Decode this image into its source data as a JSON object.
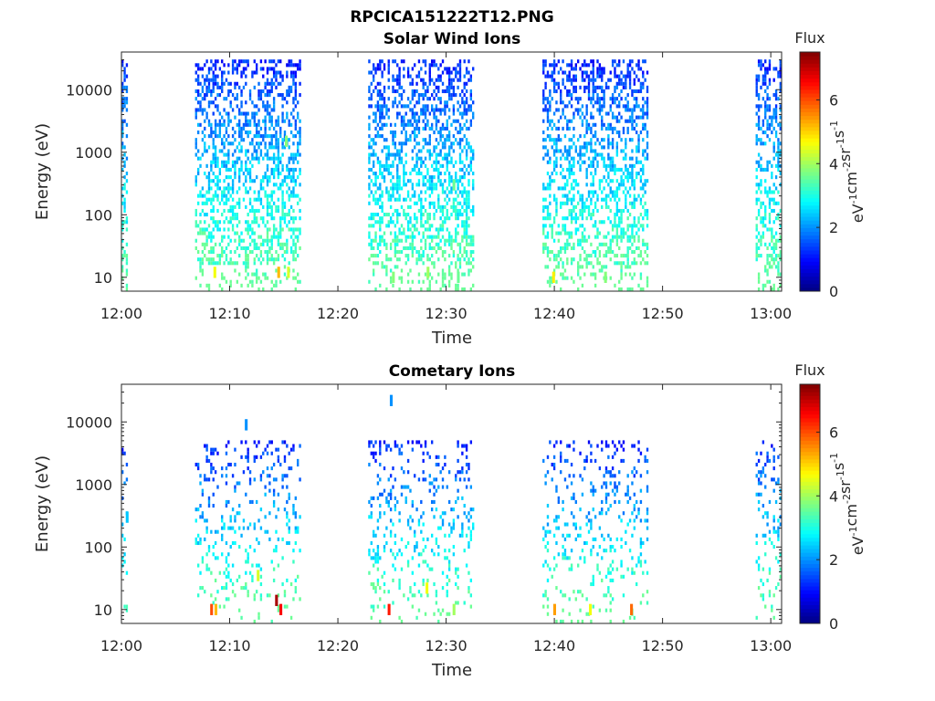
{
  "figure_title": "RPCICA151222T12.PNG",
  "colorbar": {
    "title": "Flux",
    "label_parts": [
      "eV",
      "-1",
      "cm",
      "-2",
      "sr",
      "-1",
      "s",
      "-1"
    ],
    "ticks": [
      "0",
      "2",
      "4",
      "6"
    ],
    "range": [
      0,
      7.5
    ],
    "colormap": "jet"
  },
  "chart_data": [
    {
      "type": "heatmap",
      "title": "Solar Wind Ions",
      "xlabel": "Time",
      "ylabel": "Energy (eV)",
      "x_ticks": [
        "12:00",
        "12:10",
        "12:20",
        "12:30",
        "12:40",
        "12:50",
        "13:00"
      ],
      "y_ticks": [
        "10",
        "100",
        "1000",
        "10000"
      ],
      "y_scale": "log",
      "y_range": [
        6,
        40000
      ],
      "x_range_minutes": [
        0,
        61
      ],
      "z_range": [
        0,
        7.5
      ],
      "active_intervals_minutes": [
        [
          0.0,
          0.6
        ],
        [
          6.8,
          16.4
        ],
        [
          22.8,
          32.5
        ],
        [
          38.9,
          48.6
        ],
        [
          58.6,
          61.0
        ]
      ],
      "density": 0.42,
      "max_energy": 30000,
      "seed": 11,
      "hotspots": [
        {
          "t": 8.5,
          "e": 12,
          "v": 4.6
        },
        {
          "t": 14.4,
          "e": 12,
          "v": 5.2
        },
        {
          "t": 15.3,
          "e": 12,
          "v": 4.4
        },
        {
          "t": 25.0,
          "e": 10,
          "v": 3.8
        },
        {
          "t": 28.2,
          "e": 12,
          "v": 4.0
        },
        {
          "t": 31.0,
          "e": 10,
          "v": 3.6
        },
        {
          "t": 39.8,
          "e": 10,
          "v": 4.8
        },
        {
          "t": 44.6,
          "e": 10,
          "v": 3.8
        },
        {
          "t": 15.1,
          "e": 1500,
          "v": 3.8
        },
        {
          "t": 30.6,
          "e": 300,
          "v": 3.6
        }
      ]
    },
    {
      "type": "heatmap",
      "title": "Cometary Ions",
      "xlabel": "Time",
      "ylabel": "Energy (eV)",
      "x_ticks": [
        "12:00",
        "12:10",
        "12:20",
        "12:30",
        "12:40",
        "12:50",
        "13:00"
      ],
      "y_ticks": [
        "10",
        "100",
        "1000",
        "10000"
      ],
      "y_scale": "log",
      "y_range": [
        6,
        40000
      ],
      "x_range_minutes": [
        0,
        61
      ],
      "z_range": [
        0,
        7.5
      ],
      "active_intervals_minutes": [
        [
          0.0,
          0.6
        ],
        [
          6.8,
          16.4
        ],
        [
          22.8,
          32.5
        ],
        [
          38.9,
          48.6
        ],
        [
          58.6,
          61.0
        ]
      ],
      "density": 0.16,
      "max_energy": 5000,
      "seed": 29,
      "hotspots": [
        {
          "t": 8.2,
          "e": 10,
          "v": 6.0
        },
        {
          "t": 8.6,
          "e": 10,
          "v": 5.2
        },
        {
          "t": 12.5,
          "e": 35,
          "v": 4.4
        },
        {
          "t": 14.2,
          "e": 14,
          "v": 7.2
        },
        {
          "t": 14.6,
          "e": 10,
          "v": 6.6
        },
        {
          "t": 24.6,
          "e": 10,
          "v": 6.4
        },
        {
          "t": 28.1,
          "e": 22,
          "v": 4.6
        },
        {
          "t": 30.6,
          "e": 10,
          "v": 4.0
        },
        {
          "t": 39.9,
          "e": 10,
          "v": 5.4
        },
        {
          "t": 43.2,
          "e": 10,
          "v": 4.6
        },
        {
          "t": 47.0,
          "e": 10,
          "v": 5.8
        },
        {
          "t": 24.8,
          "e": 22000,
          "v": 2.0
        },
        {
          "t": 11.4,
          "e": 9000,
          "v": 2.0
        },
        {
          "t": 0.4,
          "e": 300,
          "v": 2.4
        }
      ]
    }
  ]
}
